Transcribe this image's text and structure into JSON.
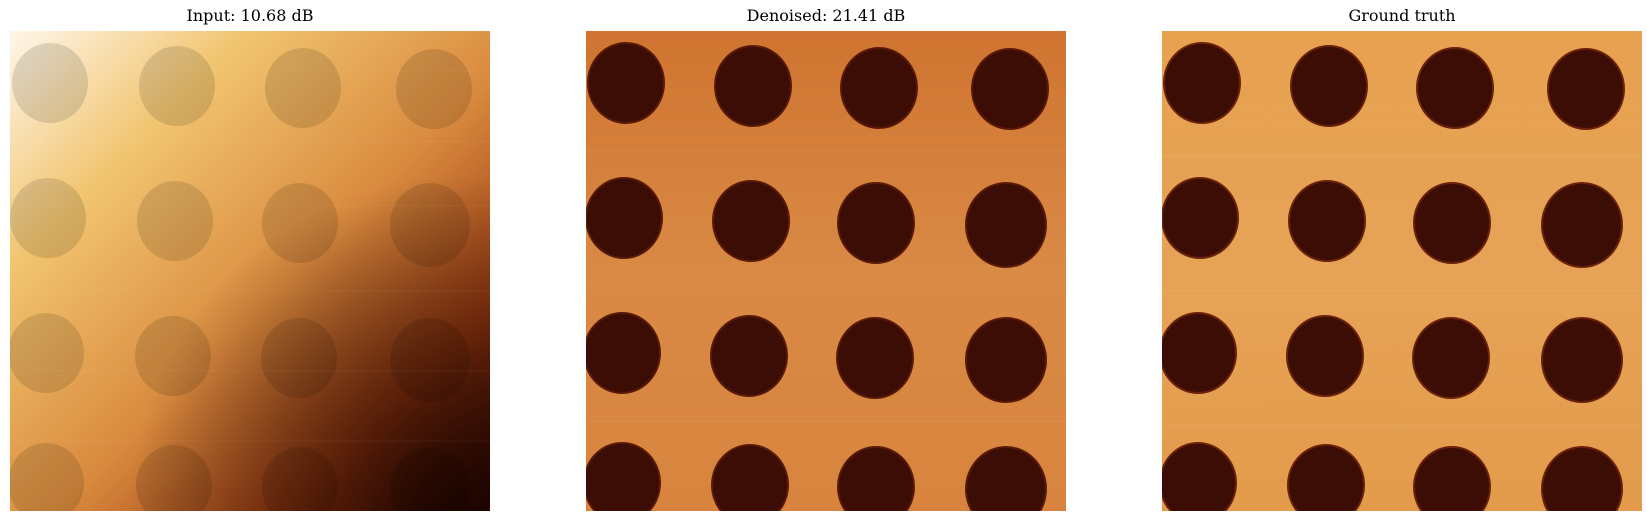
{
  "figure": {
    "panels": [
      {
        "title": "Input: 10.68 dB",
        "kind": "input",
        "holes": "faint"
      },
      {
        "title": "Denoised: 21.41 dB",
        "kind": "denoised",
        "holes": "dark"
      },
      {
        "title": "Ground truth",
        "kind": "ground-truth",
        "holes": "dark"
      }
    ],
    "grid": {
      "rows": 4,
      "cols": 4
    },
    "colors": {
      "bg_light": "#fff6e8",
      "bg_mid": "#e7a257",
      "bg_dark": "#2a0700",
      "surface_denoised": "#d77e3a",
      "surface_ground": "#e7a14f",
      "hole_dark": "#3b0d05"
    }
  }
}
